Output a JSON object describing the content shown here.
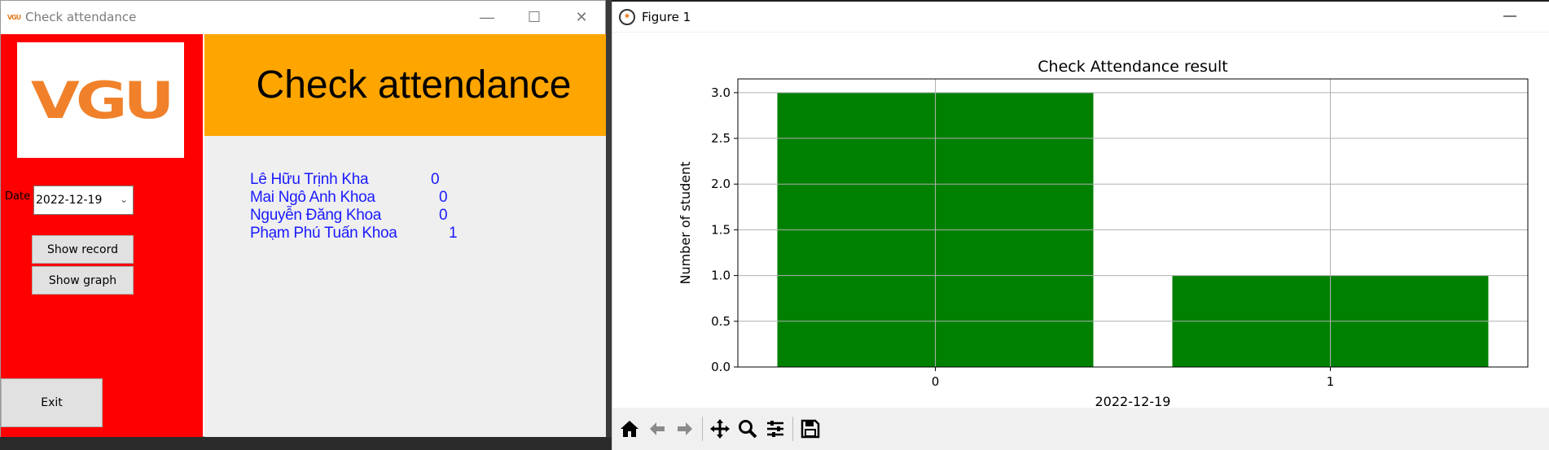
{
  "left_window": {
    "title": "Check attendance",
    "icon_text": "VGU",
    "controls": {
      "minimize": "—",
      "maximize": "☐",
      "close": "✕"
    },
    "logo_text": "VGU",
    "header_title": "Check attendance",
    "date_label": "Date",
    "date_value": "2022-12-19",
    "show_record_label": "Show record",
    "show_graph_label": "Show graph",
    "exit_label": "Exit",
    "records": [
      {
        "name": "Lê Hữu Trịnh Kha",
        "value": "0"
      },
      {
        "name": "Mai Ngô Anh Khoa",
        "value": "0"
      },
      {
        "name": "Nguyễn Đăng Khoa",
        "value": "0"
      },
      {
        "name": "Phạm Phú Tuấn Khoa",
        "value": "1"
      }
    ]
  },
  "right_window": {
    "title": "Figure 1",
    "minimize": "—",
    "toolbar": [
      "home-icon",
      "back-icon",
      "forward-icon",
      "pan-icon",
      "zoom-icon",
      "configure-icon",
      "save-icon"
    ]
  },
  "chart_data": {
    "type": "bar",
    "title": "Check Attendance result",
    "xlabel": "2022-12-19",
    "ylabel": "Number of student",
    "categories": [
      "0",
      "1"
    ],
    "values": [
      3,
      1
    ],
    "ylim": [
      0,
      3.15
    ],
    "yticks": [
      "0.0",
      "0.5",
      "1.0",
      "1.5",
      "2.0",
      "2.5",
      "3.0"
    ],
    "color": "#008000",
    "grid": true
  }
}
